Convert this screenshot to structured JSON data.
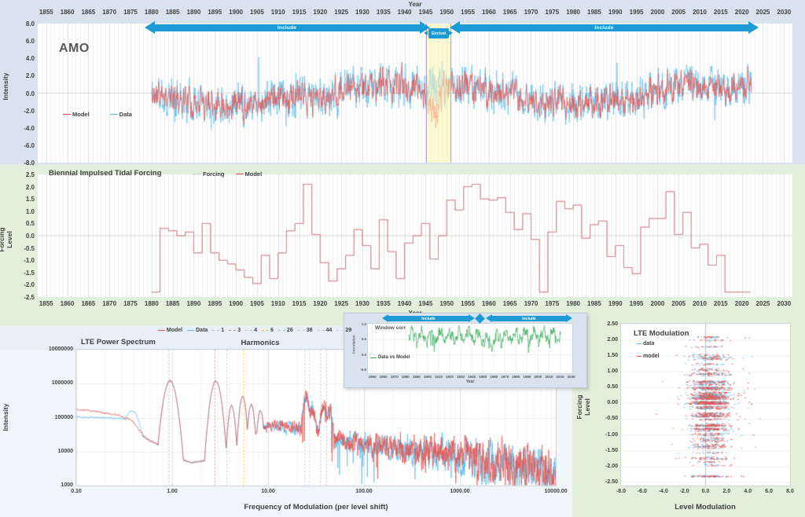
{
  "top_chart": {
    "year_axis_title": "Year",
    "title": "AMO",
    "y_axis_title": "Intensity",
    "x_ticks": [
      "1855",
      "1860",
      "1865",
      "1870",
      "1875",
      "1880",
      "1885",
      "1890",
      "1895",
      "1900",
      "1905",
      "1910",
      "1915",
      "1920",
      "1925",
      "1930",
      "1935",
      "1940",
      "1945",
      "1950",
      "1955",
      "1960",
      "1965",
      "1970",
      "1975",
      "1980",
      "1985",
      "1990",
      "1995",
      "2000",
      "2005",
      "2010",
      "2015",
      "2020",
      "2025",
      "2030"
    ],
    "y_ticks": [
      "8.0",
      "6.0",
      "4.0",
      "2.0",
      "0.0",
      "-2.0",
      "-4.0",
      "-6.0",
      "-8.0"
    ],
    "legend": [
      {
        "label": "Model",
        "color": "#e8534e",
        "style": "solid"
      },
      {
        "label": "Data",
        "color": "#56b9e9",
        "style": "solid"
      }
    ],
    "include_left": "Include",
    "include_right": "Include",
    "exclude": "Exclud"
  },
  "mid_chart": {
    "title": "Biennial Impulsed Tidal Forcing",
    "y_axis_title": "Forcing Level",
    "x_axis_title": "Year",
    "y_ticks": [
      "2.5",
      "2.0",
      "1.5",
      "1.0",
      "0.5",
      "0.0",
      "-0.5",
      "-1.0",
      "-1.5",
      "-2.0",
      "-2.5"
    ],
    "x_ticks": [
      "1855",
      "1860",
      "1865",
      "1870",
      "1875",
      "1880",
      "1885",
      "1890",
      "1895",
      "1900",
      "1905",
      "1910",
      "1915",
      "1920",
      "1925",
      "1930",
      "1935",
      "1940",
      "1945",
      "1950",
      "1955",
      "1960",
      "1965",
      "1970",
      "1975",
      "1980",
      "1985",
      "1990",
      "1995",
      "2000",
      "2005",
      "2010",
      "2015",
      "2020",
      "2025",
      "2030"
    ],
    "legend": [
      {
        "label": "Forcing",
        "color": "#9dc3e6",
        "style": "dotted"
      },
      {
        "label": "Model",
        "color": "#e8534e",
        "style": "solid"
      }
    ]
  },
  "spectrum_chart": {
    "title": "LTE Power Spectrum",
    "harmonics_title": "Harmonics",
    "x_axis_title": "Frequency of Modulation (per level shift)",
    "y_axis_title": "Intensity",
    "x_ticks": [
      "0.10",
      "1.00",
      "10.00",
      "100.00",
      "1000.00",
      "10000.00"
    ],
    "y_ticks": [
      "10000000",
      "1000000",
      "100000",
      "10000",
      "1000"
    ],
    "legend": [
      {
        "label": "Model",
        "color": "#e8534e",
        "style": "solid"
      },
      {
        "label": "Data",
        "color": "#56b9e9",
        "style": "solid"
      },
      {
        "label": "1",
        "color": "#9dc3e6",
        "style": "dashed"
      },
      {
        "label": "3",
        "color": "#e8736b",
        "style": "dashed"
      },
      {
        "label": "4",
        "color": "#bfbfbf",
        "style": "dashed"
      },
      {
        "label": "6",
        "color": "#ffc000",
        "style": "dashed"
      },
      {
        "label": "26",
        "color": "#9dc3e6",
        "style": "dashed"
      },
      {
        "label": "38",
        "color": "#bfbfbf",
        "style": "dashed"
      },
      {
        "label": "44",
        "color": "#bfbfbf",
        "style": "dashed"
      },
      {
        "label": "29",
        "color": "#bdd7ee",
        "style": "dashed"
      }
    ]
  },
  "inset_chart": {
    "title": "Window corr",
    "x_axis_title": "Year",
    "y_axis_title": "Correlation",
    "y_ticks": [
      "1.0",
      "0.5",
      "0.0",
      "-0.5"
    ],
    "x_ticks": [
      "1850",
      "1860",
      "1870",
      "1880",
      "1890",
      "1900",
      "1910",
      "1920",
      "1930",
      "1940",
      "1950",
      "1960",
      "1970",
      "1980",
      "1990",
      "2000",
      "2010",
      "2020",
      "2030"
    ],
    "legend": [
      {
        "label": "Data vs Model",
        "color": "#3fae5e",
        "style": "solid"
      }
    ],
    "include_left": "Include",
    "include_right": "Include"
  },
  "scatter_chart": {
    "title": "LTE Modulation",
    "x_axis_title": "Level Modulation",
    "y_axis_title": "Forcing Level",
    "y_ticks": [
      "2.50",
      "2.00",
      "1.50",
      "1.00",
      "0.50",
      "0.00",
      "-0.50",
      "-1.00",
      "-1.50",
      "-2.00",
      "-2.50"
    ],
    "x_ticks": [
      "-8.0",
      "-6.0",
      "-4.0",
      "-2.0",
      "0.0",
      "2.0",
      "4.0",
      "6.0",
      "8.0"
    ],
    "legend": [
      {
        "label": "data",
        "color": "#56b9e9",
        "style": "solid"
      },
      {
        "label": "model",
        "color": "#e8534e",
        "style": "solid"
      }
    ]
  },
  "colors": {
    "top_panel_bg": "#d9e3f0",
    "green_panel_bg": "#e2efda",
    "bottomleft_panel_bg": "#f1f6fb",
    "legend_strip_bg": "#e8eff7",
    "include_arrow_blue": "#1b9ad6",
    "exclude_band_fill": "#fcf4b0",
    "exclude_band_border": "#b3a1c7",
    "model_red": "#e8534e",
    "data_blue": "#56b9e9",
    "forcing_dotted_blue": "#9dc3e6",
    "corr_green": "#3fae5e"
  },
  "chart_data": [
    {
      "id": "amo",
      "type": "line",
      "title": "AMO",
      "xlabel": "Year",
      "ylabel": "Intensity",
      "x_range": [
        1853,
        2032
      ],
      "x_tick_step": 5,
      "y_range": [
        -8,
        8
      ],
      "y_tick_step": 2,
      "data_x_range": [
        1880,
        2022
      ],
      "sampling": "monthly",
      "series": [
        {
          "name": "Model",
          "color": "#e8534e"
        },
        {
          "name": "Data",
          "color": "#56b9e9"
        }
      ],
      "include_windows": [
        [
          1880,
          1945
        ],
        [
          1950.5,
          2022
        ]
      ],
      "exclude_window": [
        1945,
        1950.5
      ],
      "baseline_anchors": [
        [
          1880,
          -0.2
        ],
        [
          1890,
          -0.9
        ],
        [
          1900,
          -1.1
        ],
        [
          1910,
          -0.7
        ],
        [
          1920,
          -0.6
        ],
        [
          1926,
          0.3
        ],
        [
          1935,
          0.9
        ],
        [
          1945,
          0.7
        ],
        [
          1955,
          0.8
        ],
        [
          1962,
          0.1
        ],
        [
          1970,
          -0.9
        ],
        [
          1978,
          -1.3
        ],
        [
          1986,
          -1.1
        ],
        [
          1994,
          -0.6
        ],
        [
          2000,
          0.4
        ],
        [
          2008,
          0.9
        ],
        [
          2015,
          0.7
        ],
        [
          2022,
          0.9
        ]
      ],
      "model_dip": {
        "center": 1947,
        "width": 1.6,
        "depth": -3.4
      },
      "synthetic": {
        "seed_data": 11,
        "seed_model": 23,
        "ar": 0.45,
        "amp_data": 1.9,
        "amp_model": 1.2,
        "model_data_mix": 0.62,
        "spike_prob": 0.012
      }
    },
    {
      "id": "forcing",
      "type": "step",
      "title": "Biennial Impulsed Tidal Forcing",
      "xlabel": "Year",
      "ylabel": "Forcing Level",
      "x_range": [
        1853,
        2032
      ],
      "y_range": [
        -2.5,
        2.5
      ],
      "data_x_range": [
        1880,
        2022
      ],
      "step_years": 2,
      "series": [
        {
          "name": "Forcing",
          "color": "#9dc3e6",
          "line": "dotted"
        },
        {
          "name": "Model",
          "color": "#e8534e",
          "line": "solid"
        }
      ],
      "synthetic": {
        "seed": 7,
        "ar": 0.5,
        "amp": 1.6,
        "spike_prob": 0.12,
        "spike_amp": 0.9,
        "clamp": [
          -2.3,
          2.1
        ],
        "quantize": 0.05
      }
    },
    {
      "id": "spectrum",
      "type": "line",
      "x_scale": "log",
      "y_scale": "log",
      "title": "LTE Power Spectrum",
      "xlabel": "Frequency of Modulation (per level shift)",
      "ylabel": "Intensity",
      "x_range": [
        0.1,
        10000
      ],
      "y_range": [
        1000,
        10000000
      ],
      "series": [
        {
          "name": "Model",
          "color": "#e8534e"
        },
        {
          "name": "Data",
          "color": "#56b9e9"
        }
      ],
      "harmonic_lines": [
        {
          "label": "1",
          "value": 1,
          "color": "#9dc3e6"
        },
        {
          "label": "3",
          "value": 3,
          "color": "#e8736b"
        },
        {
          "label": "4",
          "value": 4,
          "color": "#bfbfbf"
        },
        {
          "label": "6",
          "value": 6,
          "color": "#ffc000"
        },
        {
          "label": "26",
          "value": 26,
          "color": "#9dc3e6"
        },
        {
          "label": "38",
          "value": 38,
          "color": "#bfbfbf"
        },
        {
          "label": "44",
          "value": 44,
          "color": "#bfbfbf"
        },
        {
          "label": "29",
          "value": 29,
          "color": "#bdd7ee"
        }
      ],
      "floor_anchors": [
        [
          -1,
          5.02
        ],
        [
          -0.55,
          4.98
        ],
        [
          -0.42,
          4.88
        ],
        [
          -0.3,
          4.45
        ],
        [
          -0.24,
          4.32
        ],
        [
          -0.1,
          4.15
        ],
        [
          0.05,
          3.8
        ],
        [
          0.2,
          3.68
        ],
        [
          0.33,
          3.72
        ],
        [
          0.45,
          3.9
        ],
        [
          0.55,
          4.05
        ],
        [
          0.68,
          4.2
        ],
        [
          0.8,
          4.35
        ],
        [
          0.95,
          4.72
        ],
        [
          1.1,
          4.78
        ],
        [
          1.5,
          4.55
        ],
        [
          2,
          4.2
        ],
        [
          2.5,
          4.05
        ],
        [
          3,
          3.85
        ],
        [
          3.5,
          3.6
        ],
        [
          4,
          3.3
        ]
      ],
      "peaks": [
        [
          -0.022,
          6.08,
          120
        ],
        [
          0.455,
          6.08,
          170
        ],
        [
          0.62,
          5.35,
          400
        ],
        [
          0.735,
          5.62,
          400
        ],
        [
          0.825,
          5.38,
          450
        ],
        [
          0.92,
          5.2,
          450
        ],
        [
          1.4,
          5.55,
          300
        ],
        [
          1.46,
          5.3,
          350
        ],
        [
          1.58,
          5.35,
          350
        ],
        [
          1.64,
          5.2,
          350
        ]
      ],
      "blue_bump": [
        -0.42,
        5.2,
        60
      ],
      "red_low_offset": {
        "a": 0.22,
        "w": 0.45
      },
      "synthetic": {
        "seed_data": 41,
        "seed_model": 55,
        "ar": 0.55
      }
    },
    {
      "id": "window_corr",
      "type": "line",
      "title": "Window corr",
      "xlabel": "Year",
      "ylabel": "Correlation",
      "x_range": [
        1846,
        2031
      ],
      "y_range": [
        -0.5,
        1.0
      ],
      "data_x_range": [
        1883,
        2020.6
      ],
      "series": [
        {
          "name": "Data vs Model",
          "color": "#3fae5e"
        }
      ],
      "include_windows": [
        [
          1883,
          1945
        ],
        [
          1950,
          2020
        ]
      ],
      "synthetic": {
        "seed": 31,
        "ar": 0.5,
        "noise": 0.12,
        "base": 0.63,
        "osc1_amp": 0.17,
        "osc1_period": 8.5,
        "osc2_amp": 0.09,
        "osc2_period": 3.07,
        "mid_dip": {
          "center": 1957,
          "width": 9,
          "depth": 0.22
        },
        "clamp": [
          0.08,
          0.96
        ]
      }
    },
    {
      "id": "lte_modulation",
      "type": "scatter",
      "title": "LTE Modulation",
      "xlabel": "Level Modulation",
      "ylabel": "Forcing Level",
      "x_range": [
        -8,
        8
      ],
      "y_range": [
        -2.5,
        2.5
      ],
      "series": [
        {
          "name": "data",
          "color": "#56b9e9"
        },
        {
          "name": "model",
          "color": "#e8534e"
        }
      ],
      "bands": "horizontal point bands at biennial forcing step levels",
      "synthetic": {
        "seed_data": 61,
        "seed_model": 77,
        "x_spread": 1.7,
        "x_offset": 0.35,
        "tail_prob": 0.1,
        "base_count": 6,
        "peak_count": 26
      }
    }
  ]
}
